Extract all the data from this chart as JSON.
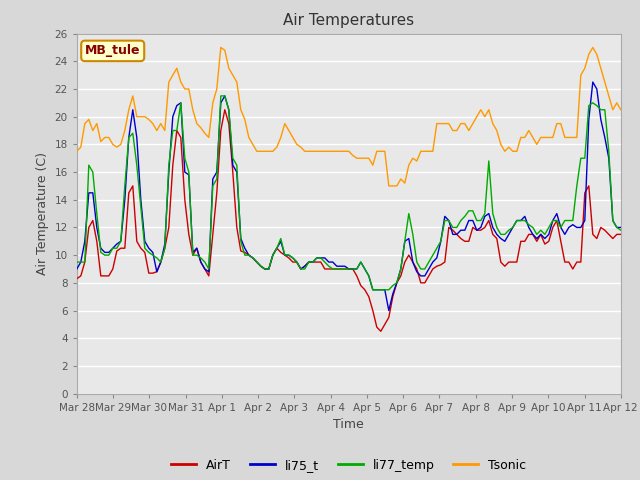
{
  "title": "Air Temperatures",
  "xlabel": "Time",
  "ylabel": "Air Temperature (C)",
  "ylim": [
    0,
    26
  ],
  "site_label": "MB_tule",
  "xtick_labels": [
    "Mar 28",
    "Mar 29",
    "Mar 30",
    "Mar 31",
    "Apr 1",
    "Apr 2",
    "Apr 3",
    "Apr 4",
    "Apr 5",
    "Apr 6",
    "Apr 7",
    "Apr 8",
    "Apr 9",
    "Apr 10",
    "Apr 11",
    "Apr 12"
  ],
  "colors": {
    "AirT": "#cc0000",
    "li75_t": "#0000cc",
    "li77_temp": "#00aa00",
    "Tsonic": "#ff9900"
  },
  "fig_bg": "#d8d8d8",
  "plot_bg": "#e8e8e8",
  "grid_color": "#ffffff",
  "AirT": [
    8.3,
    8.5,
    9.5,
    12.0,
    12.5,
    11.0,
    8.5,
    8.5,
    8.5,
    9.0,
    10.3,
    10.5,
    10.5,
    14.5,
    15.0,
    11.0,
    10.5,
    10.2,
    8.7,
    8.7,
    8.8,
    9.5,
    10.5,
    12.0,
    16.5,
    19.0,
    18.5,
    14.0,
    11.5,
    10.0,
    10.5,
    9.5,
    9.0,
    8.5,
    11.5,
    14.5,
    19.0,
    20.5,
    19.5,
    16.0,
    12.0,
    10.3,
    10.2,
    10.0,
    9.8,
    9.5,
    9.2,
    9.0,
    9.0,
    10.0,
    10.5,
    10.2,
    10.0,
    9.8,
    9.5,
    9.5,
    9.0,
    9.2,
    9.5,
    9.5,
    9.5,
    9.5,
    9.0,
    9.0,
    9.0,
    9.0,
    9.0,
    9.0,
    9.0,
    9.0,
    8.5,
    7.8,
    7.5,
    7.0,
    6.0,
    4.8,
    4.5,
    5.0,
    5.5,
    7.0,
    8.0,
    8.5,
    9.5,
    10.0,
    9.5,
    9.0,
    8.0,
    8.0,
    8.5,
    9.0,
    9.2,
    9.3,
    9.5,
    12.0,
    11.8,
    11.5,
    11.2,
    11.0,
    11.0,
    12.0,
    11.8,
    11.8,
    12.0,
    12.5,
    11.5,
    11.2,
    9.5,
    9.2,
    9.5,
    9.5,
    9.5,
    11.0,
    11.0,
    11.5,
    11.5,
    11.0,
    11.5,
    10.8,
    11.0,
    12.0,
    12.5,
    11.0,
    9.5,
    9.5,
    9.0,
    9.5,
    9.5,
    14.5,
    15.0,
    11.5,
    11.2,
    12.0,
    11.8,
    11.5,
    11.2,
    11.5,
    11.5
  ],
  "li75_t": [
    9.0,
    9.5,
    11.0,
    14.5,
    14.5,
    12.0,
    10.5,
    10.2,
    10.2,
    10.5,
    10.8,
    11.0,
    14.0,
    18.5,
    20.5,
    18.5,
    14.0,
    11.0,
    10.5,
    10.2,
    8.8,
    9.5,
    10.8,
    16.0,
    20.0,
    20.8,
    21.0,
    16.0,
    15.8,
    10.2,
    10.5,
    9.5,
    9.0,
    8.8,
    15.5,
    16.0,
    21.0,
    21.5,
    20.5,
    16.5,
    16.0,
    11.2,
    10.5,
    10.0,
    9.8,
    9.5,
    9.2,
    9.0,
    9.0,
    10.0,
    10.5,
    11.0,
    10.0,
    10.0,
    9.8,
    9.5,
    9.0,
    9.2,
    9.5,
    9.5,
    9.8,
    9.8,
    9.8,
    9.5,
    9.5,
    9.2,
    9.2,
    9.2,
    9.0,
    9.0,
    9.0,
    9.5,
    9.0,
    8.5,
    7.5,
    7.5,
    7.5,
    7.5,
    6.0,
    7.2,
    8.0,
    9.0,
    11.0,
    11.2,
    9.5,
    8.8,
    8.5,
    8.5,
    9.0,
    9.5,
    9.8,
    11.0,
    12.8,
    12.5,
    11.5,
    11.5,
    11.8,
    11.8,
    12.5,
    12.5,
    11.8,
    12.0,
    12.8,
    13.0,
    12.0,
    11.5,
    11.2,
    11.0,
    11.5,
    12.0,
    12.5,
    12.5,
    12.8,
    12.0,
    11.5,
    11.2,
    11.5,
    11.2,
    11.5,
    12.5,
    13.0,
    12.0,
    11.5,
    12.0,
    12.2,
    12.0,
    12.0,
    12.5,
    19.8,
    22.5,
    22.0,
    19.8,
    18.5,
    17.0,
    12.5,
    12.0,
    12.0
  ],
  "li77_temp": [
    9.5,
    9.5,
    9.5,
    16.5,
    16.0,
    13.0,
    10.2,
    10.0,
    10.0,
    10.5,
    10.5,
    11.0,
    15.0,
    18.5,
    18.8,
    16.5,
    13.5,
    10.5,
    10.2,
    10.0,
    9.8,
    9.5,
    10.5,
    16.5,
    19.0,
    19.0,
    21.0,
    17.0,
    16.0,
    10.0,
    10.0,
    9.8,
    9.5,
    9.0,
    15.0,
    15.5,
    21.5,
    21.5,
    20.5,
    17.0,
    16.5,
    11.0,
    10.0,
    10.0,
    9.8,
    9.5,
    9.2,
    9.0,
    9.0,
    10.0,
    10.5,
    11.2,
    10.0,
    10.0,
    9.8,
    9.5,
    9.0,
    9.0,
    9.5,
    9.5,
    9.8,
    9.8,
    9.5,
    9.2,
    9.0,
    9.0,
    9.0,
    9.0,
    9.0,
    9.0,
    9.0,
    9.5,
    9.0,
    8.5,
    7.5,
    7.5,
    7.5,
    7.5,
    7.5,
    7.8,
    8.0,
    9.0,
    11.0,
    13.0,
    11.5,
    9.5,
    9.0,
    9.0,
    9.5,
    10.0,
    10.5,
    11.0,
    12.5,
    12.5,
    12.0,
    12.0,
    12.5,
    12.8,
    13.2,
    13.2,
    12.5,
    12.5,
    13.0,
    16.8,
    13.0,
    12.0,
    11.5,
    11.5,
    11.8,
    12.0,
    12.5,
    12.5,
    12.5,
    12.2,
    12.0,
    11.5,
    11.8,
    11.5,
    12.0,
    12.5,
    12.5,
    12.0,
    12.5,
    12.5,
    12.5,
    15.0,
    17.0,
    17.0,
    20.8,
    21.0,
    20.8,
    20.5,
    20.5,
    17.5,
    12.5,
    12.0,
    11.8
  ],
  "Tsonic": [
    17.5,
    17.8,
    19.5,
    19.8,
    19.0,
    19.5,
    18.2,
    18.5,
    18.5,
    18.0,
    17.8,
    18.0,
    19.0,
    20.5,
    21.5,
    20.0,
    20.0,
    20.0,
    19.8,
    19.5,
    19.0,
    19.5,
    19.0,
    22.5,
    23.0,
    23.5,
    22.5,
    22.0,
    22.0,
    20.5,
    19.5,
    19.2,
    18.8,
    18.5,
    21.0,
    22.0,
    25.0,
    24.8,
    23.5,
    23.0,
    22.5,
    20.5,
    19.8,
    18.5,
    18.0,
    17.5,
    17.5,
    17.5,
    17.5,
    17.5,
    17.8,
    18.5,
    19.5,
    19.0,
    18.5,
    18.0,
    17.8,
    17.5,
    17.5,
    17.5,
    17.5,
    17.5,
    17.5,
    17.5,
    17.5,
    17.5,
    17.5,
    17.5,
    17.5,
    17.2,
    17.0,
    17.0,
    17.0,
    17.0,
    16.5,
    17.5,
    17.5,
    17.5,
    15.0,
    15.0,
    15.0,
    15.5,
    15.2,
    16.5,
    17.0,
    16.8,
    17.5,
    17.5,
    17.5,
    17.5,
    19.5,
    19.5,
    19.5,
    19.5,
    19.0,
    19.0,
    19.5,
    19.5,
    19.0,
    19.5,
    20.0,
    20.5,
    20.0,
    20.5,
    19.5,
    19.0,
    18.0,
    17.5,
    17.8,
    17.5,
    17.5,
    18.5,
    18.5,
    19.0,
    18.5,
    18.0,
    18.5,
    18.5,
    18.5,
    18.5,
    19.5,
    19.5,
    18.5,
    18.5,
    18.5,
    18.5,
    23.0,
    23.5,
    24.5,
    25.0,
    24.5,
    23.5,
    22.5,
    21.5,
    20.5,
    21.0,
    20.5
  ]
}
